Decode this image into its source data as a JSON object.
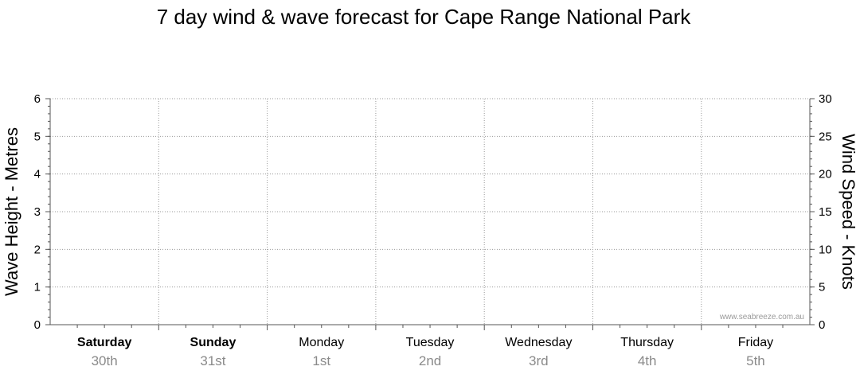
{
  "chart_data": {
    "type": "line",
    "title": "7 day wind & wave forecast for Cape Range National Park",
    "left_axis": {
      "label": "Wave Height - Metres",
      "min": 0,
      "max": 6,
      "ticks": [
        "0",
        "1",
        "2",
        "3",
        "4",
        "5",
        "6"
      ]
    },
    "right_axis": {
      "label": "Wind Speed - Knots",
      "min": 0,
      "max": 30,
      "ticks": [
        "0",
        "5",
        "10",
        "15",
        "20",
        "25",
        "30"
      ]
    },
    "grid": true,
    "days": [
      {
        "day": "Saturday",
        "date": "30th",
        "bold": true
      },
      {
        "day": "Sunday",
        "date": "31st",
        "bold": true
      },
      {
        "day": "Monday",
        "date": "1st",
        "bold": false
      },
      {
        "day": "Tuesday",
        "date": "2nd",
        "bold": false
      },
      {
        "day": "Wednesday",
        "date": "3rd",
        "bold": false
      },
      {
        "day": "Thursday",
        "date": "4th",
        "bold": false
      },
      {
        "day": "Friday",
        "date": "5th",
        "bold": false
      }
    ],
    "series": [],
    "watermark": "www.seabreeze.com.au"
  },
  "colors": {
    "grid": "#9a9a9a",
    "axis": "#555555",
    "date_text": "#8a8a8a"
  }
}
